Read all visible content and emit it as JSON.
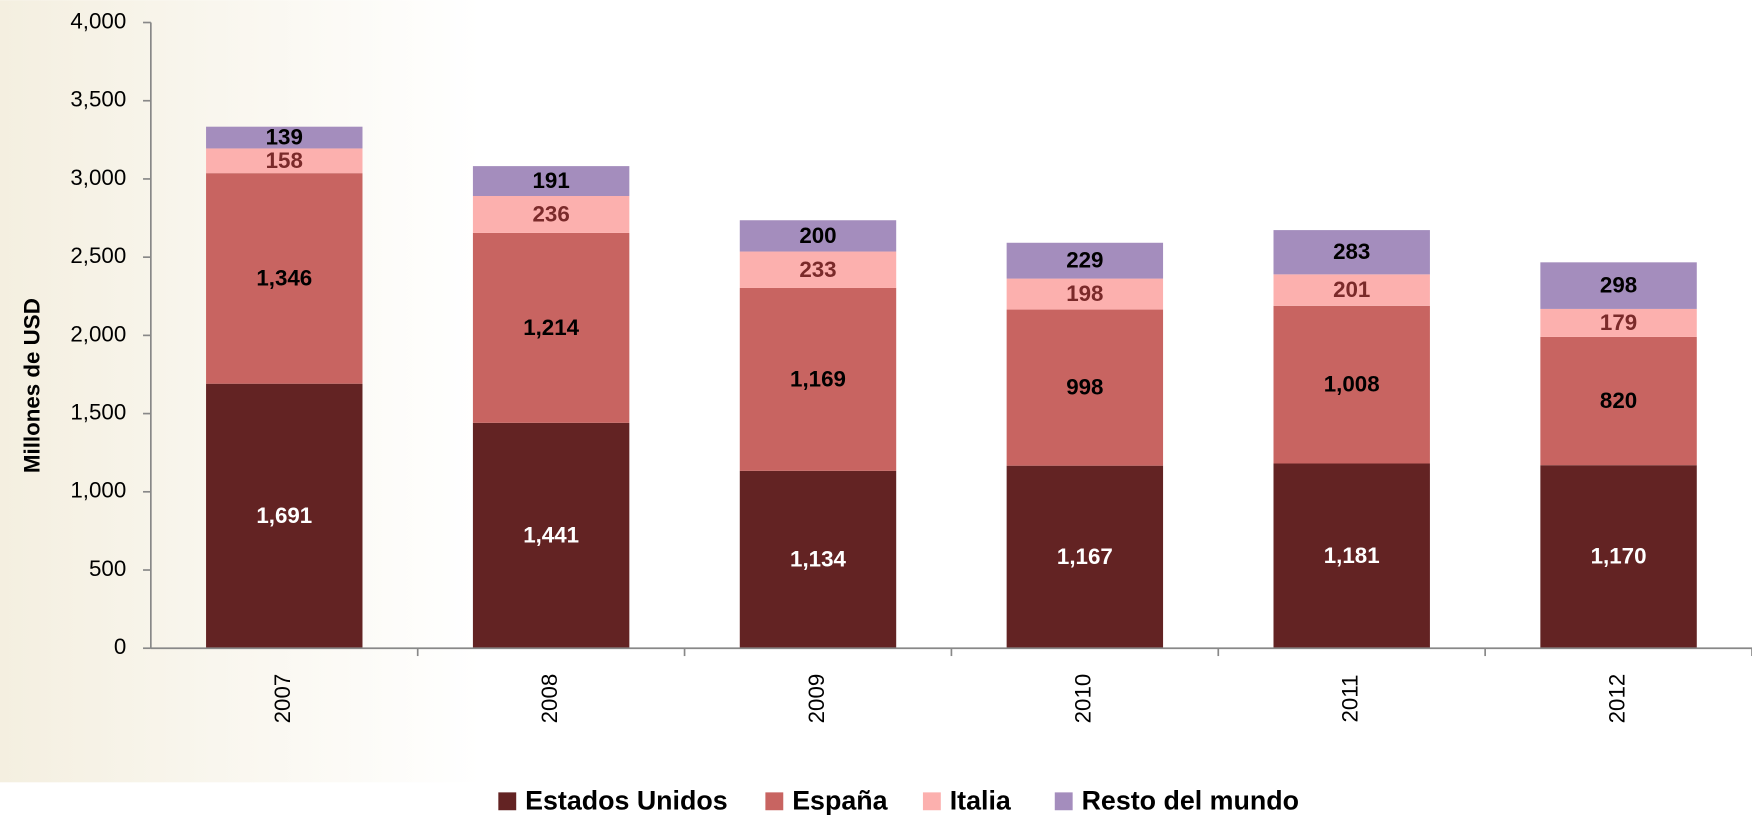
{
  "chart_data": {
    "type": "stacked_bar",
    "y_label": "Millones de USD",
    "categories": [
      "2007",
      "2008",
      "2009",
      "2010",
      "2011",
      "2012"
    ],
    "series": [
      {
        "name": "Estados Unidos",
        "color": "#632323",
        "label_color": "#ffffff",
        "values": [
          1691,
          1441,
          1134,
          1167,
          1181,
          1170
        ],
        "value_labels": [
          "1,691",
          "1,441",
          "1,134",
          "1,167",
          "1,181",
          "1,170"
        ]
      },
      {
        "name": "España",
        "color": "#c86461",
        "label_color": "#000000",
        "values": [
          1346,
          1214,
          1169,
          998,
          1008,
          820
        ],
        "value_labels": [
          "1,346",
          "1,214",
          "1,169",
          "998",
          "1,008",
          "820"
        ]
      },
      {
        "name": "Italia",
        "color": "#fcb0ae",
        "label_color": "#7a2a2a",
        "values": [
          158,
          236,
          233,
          198,
          201,
          179
        ]
      },
      {
        "name": "Resto del mundo",
        "color": "#a48dbd",
        "label_color": "#000000",
        "values": [
          139,
          191,
          200,
          229,
          283,
          298
        ]
      }
    ],
    "ylim": [
      0,
      4000
    ],
    "yticks": [
      0,
      500,
      {
        "value": 1000,
        "label": "1,000"
      },
      {
        "value": 1500,
        "label": "1,500"
      },
      {
        "value": 2000,
        "label": "2,000"
      },
      {
        "value": 2500,
        "label": "2,500"
      },
      {
        "value": 3000,
        "label": "3,000"
      },
      {
        "value": 3500,
        "label": "3,500"
      },
      {
        "value": 4000,
        "label": "4,000"
      }
    ],
    "legend": "bottom"
  }
}
